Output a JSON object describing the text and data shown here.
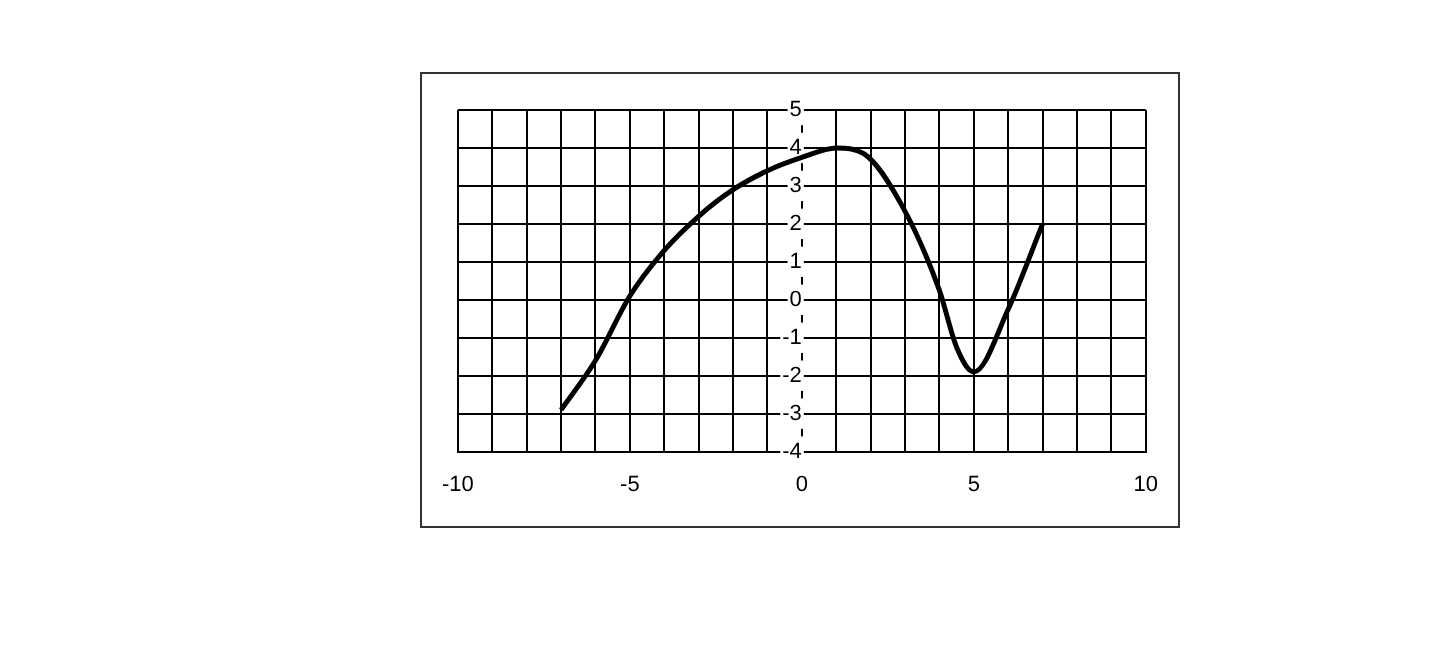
{
  "chart_data": {
    "type": "line",
    "x": [
      -7,
      -6,
      -5,
      -4,
      -3,
      -2,
      -1,
      0,
      1,
      1.8,
      2.9,
      4,
      4.5,
      5,
      6,
      7
    ],
    "series": [
      {
        "color": "#000000",
        "values": [
          -2.9,
          -1.6,
          0.1,
          1.3,
          2.2,
          2.9,
          3.4,
          3.75,
          4,
          3.85,
          2.5,
          0.25,
          -1.25,
          -1.9,
          -0.25,
          2
        ]
      }
    ],
    "xlim": [
      -10,
      10
    ],
    "xticks": [
      -10,
      {
        "value": -9,
        "label": null
      },
      {
        "value": -8,
        "label": null
      },
      {
        "value": -7,
        "label": null
      },
      {
        "value": -6,
        "label": null
      },
      -5,
      {
        "value": -4,
        "label": null
      },
      {
        "value": -3,
        "label": null
      },
      {
        "value": -2,
        "label": null
      },
      {
        "value": -1,
        "label": null
      },
      0,
      {
        "value": 1,
        "label": null
      },
      {
        "value": 2,
        "label": null
      },
      {
        "value": 3,
        "label": null
      },
      {
        "value": 4,
        "label": null
      },
      5,
      {
        "value": 6,
        "label": null
      },
      {
        "value": 7,
        "label": null
      },
      {
        "value": 8,
        "label": null
      },
      {
        "value": 9,
        "label": null
      },
      10
    ],
    "ylim": [
      -4,
      5
    ],
    "yticks": [
      -4,
      -3,
      -2,
      -1,
      0,
      1,
      2,
      3,
      4,
      5
    ],
    "grid": true,
    "legend": false,
    "marker": "none",
    "line_style": "solid"
  }
}
